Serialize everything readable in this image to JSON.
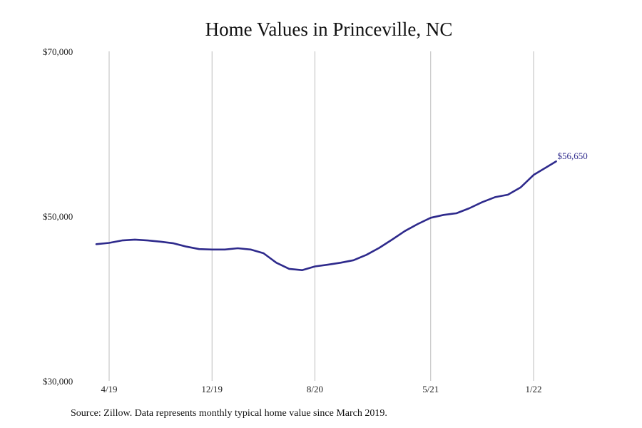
{
  "chart_data": {
    "type": "line",
    "title": "Home Values in Princeville, NC",
    "xlabel": "",
    "ylabel": "",
    "ylim": [
      30000,
      70000
    ],
    "y_ticks": [
      {
        "value": 30000,
        "label": "$30,000"
      },
      {
        "value": 50000,
        "label": "$50,000"
      },
      {
        "value": 70000,
        "label": "$70,000"
      }
    ],
    "x_ticks": [
      {
        "date": "2019-04",
        "label": "4/19"
      },
      {
        "date": "2019-12",
        "label": "12/19"
      },
      {
        "date": "2020-08",
        "label": "8/20"
      },
      {
        "date": "2021-05",
        "label": "5/21"
      },
      {
        "date": "2022-01",
        "label": "1/22"
      }
    ],
    "grid": "vertical",
    "line_color": "#2e2a8c",
    "end_label": "$56,650",
    "series": [
      {
        "x": [
          "2019-03",
          "2019-04",
          "2019-05",
          "2019-06",
          "2019-07",
          "2019-08",
          "2019-09",
          "2019-10",
          "2019-11",
          "2019-12",
          "2020-01",
          "2020-02",
          "2020-03",
          "2020-04",
          "2020-05",
          "2020-06",
          "2020-07",
          "2020-08",
          "2020-09",
          "2020-10",
          "2020-11",
          "2020-12",
          "2021-01",
          "2021-02",
          "2021-03",
          "2021-04",
          "2021-05",
          "2021-06",
          "2021-07",
          "2021-08",
          "2021-09",
          "2021-10",
          "2021-11",
          "2021-12",
          "2022-01",
          "2022-02",
          "2022-03"
        ],
        "values": [
          46600,
          46750,
          47050,
          47150,
          47050,
          46900,
          46700,
          46300,
          46000,
          45950,
          45950,
          46100,
          45950,
          45500,
          44350,
          43600,
          43450,
          43900,
          44100,
          44350,
          44650,
          45300,
          46150,
          47150,
          48200,
          49050,
          49800,
          50150,
          50350,
          50950,
          51700,
          52300,
          52600,
          53500,
          55000,
          56650,
          56650
        ]
      }
    ]
  },
  "source_note": "Source: Zillow. Data represents monthly typical home value since March 2019."
}
